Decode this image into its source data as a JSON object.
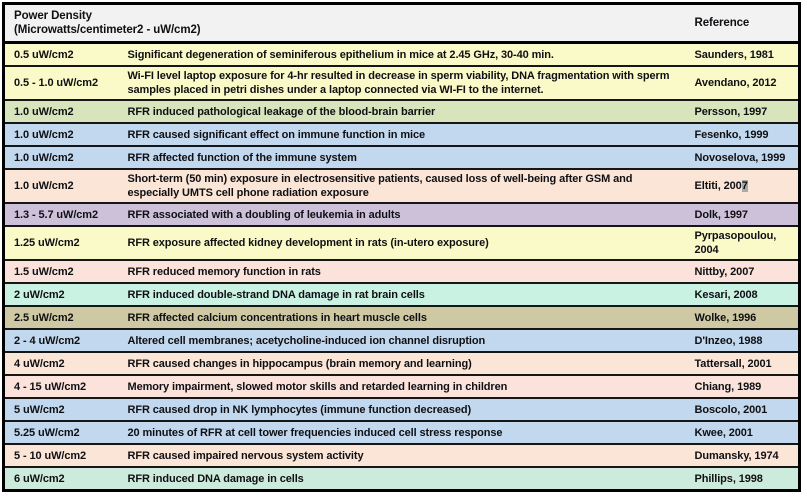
{
  "table": {
    "header": {
      "power_density_line1": "Power Density",
      "power_density_line2": "(Microwatts/centimeter2 - uW/cm2)",
      "reference_label": "Reference"
    },
    "colors": {
      "header_bg": "#f2f2f2",
      "outer_border": "#000000",
      "row_border": "#161616",
      "text": "#101014",
      "selection_gray": "#a9a9a9",
      "yellow": "#fafac8",
      "green": "#d7e4bc",
      "blue": "#c2d8ee",
      "peach": "#fbe5d6",
      "pink": "#fbe2da",
      "purple": "#ccc1d9",
      "cyan": "#c9f2e3",
      "tan": "#cfc9a3",
      "mint": "#cdebdc"
    },
    "rows": [
      {
        "dose": "0.5 uW/cm2",
        "effect": "Significant degeneration of seminiferous epithelium in mice at 2.45 GHz, 30-40 min.",
        "ref": "Saunders, 1981",
        "color": "#fafac8"
      },
      {
        "dose": "0.5 - 1.0 uW/cm2",
        "effect": "Wi-FI level laptop exposure for 4-hr resulted in decrease in sperm viability, DNA fragmentation with sperm samples placed in petri dishes under a laptop connected via WI-FI to the internet.",
        "ref": "Avendano, 2012",
        "color": "#fafac8"
      },
      {
        "dose": "1.0 uW/cm2",
        "effect": "RFR induced pathological leakage of the blood-brain barrier",
        "ref": "Persson, 1997",
        "color": "#d7e4bc"
      },
      {
        "dose": "1.0 uW/cm2",
        "effect": "RFR caused significant effect on immune function in mice",
        "ref": "Fesenko, 1999",
        "color": "#c2d8ee"
      },
      {
        "dose": "1.0 uW/cm2",
        "effect": "RFR affected function of the immune system",
        "ref": "Novoselova, 1999",
        "color": "#c2d8ee"
      },
      {
        "dose": "1.0 uW/cm2",
        "effect": "Short-term (50 min) exposure in electrosensitive patients, caused loss of well-being after GSM and especially UMTS cell phone radiation exposure",
        "ref": "Eltiti, 200",
        "ref_highlight": "7",
        "color": "#fbe5d6"
      },
      {
        "dose": "1.3 - 5.7 uW/cm2",
        "effect": "RFR associated with a doubling of leukemia in adults",
        "ref": "Dolk, 1997",
        "color": "#ccc1d9"
      },
      {
        "dose": "1.25 uW/cm2",
        "effect": "RFR exposure affected kidney development in rats (in-utero exposure)",
        "ref": "Pyrpasopoulou, 2004",
        "color": "#fafac8"
      },
      {
        "dose": "1.5 uW/cm2",
        "effect": "RFR reduced memory function in rats",
        "ref": "Nittby, 2007",
        "color": "#fbe2da"
      },
      {
        "dose": "2 uW/cm2",
        "effect": "RFR induced double-strand DNA damage in rat brain cells",
        "ref": "Kesari, 2008",
        "color": "#c9f2e3"
      },
      {
        "dose": "2.5 uW/cm2",
        "effect": "RFR affected calcium concentrations in heart muscle cells",
        "ref": "Wolke, 1996",
        "color": "#cfc9a3"
      },
      {
        "dose": "2 - 4 uW/cm2",
        "effect": "Altered cell membranes; acetycholine-induced ion channel disruption",
        "ref": "D'Inzeo, 1988",
        "color": "#c2d8ee"
      },
      {
        "dose": "4 uW/cm2",
        "effect": "RFR caused changes in hippocampus (brain memory and learning)",
        "ref": "Tattersall, 2001",
        "color": "#fbe5d6"
      },
      {
        "dose": "4 - 15 uW/cm2",
        "effect": "Memory impairment, slowed motor skills and retarded learning in children",
        "ref": "Chiang, 1989",
        "color": "#fbe2da"
      },
      {
        "dose": "5 uW/cm2",
        "effect": "RFR caused drop in NK lymphocytes (immune function decreased)",
        "ref": "Boscolo, 2001",
        "color": "#c2d8ee"
      },
      {
        "dose": "5.25 uW/cm2",
        "effect": "20 minutes of RFR at cell tower frequencies induced cell stress response",
        "ref": "Kwee, 2001",
        "color": "#c2d8ee"
      },
      {
        "dose": "5 - 10 uW/cm2",
        "effect": "RFR caused impaired nervous system activity",
        "ref": "Dumansky, 1974",
        "color": "#fbe5d6"
      },
      {
        "dose": "6 uW/cm2",
        "effect": "RFR induced DNA damage in cells",
        "ref": "Phillips, 1998",
        "color": "#cdebdc"
      }
    ]
  }
}
